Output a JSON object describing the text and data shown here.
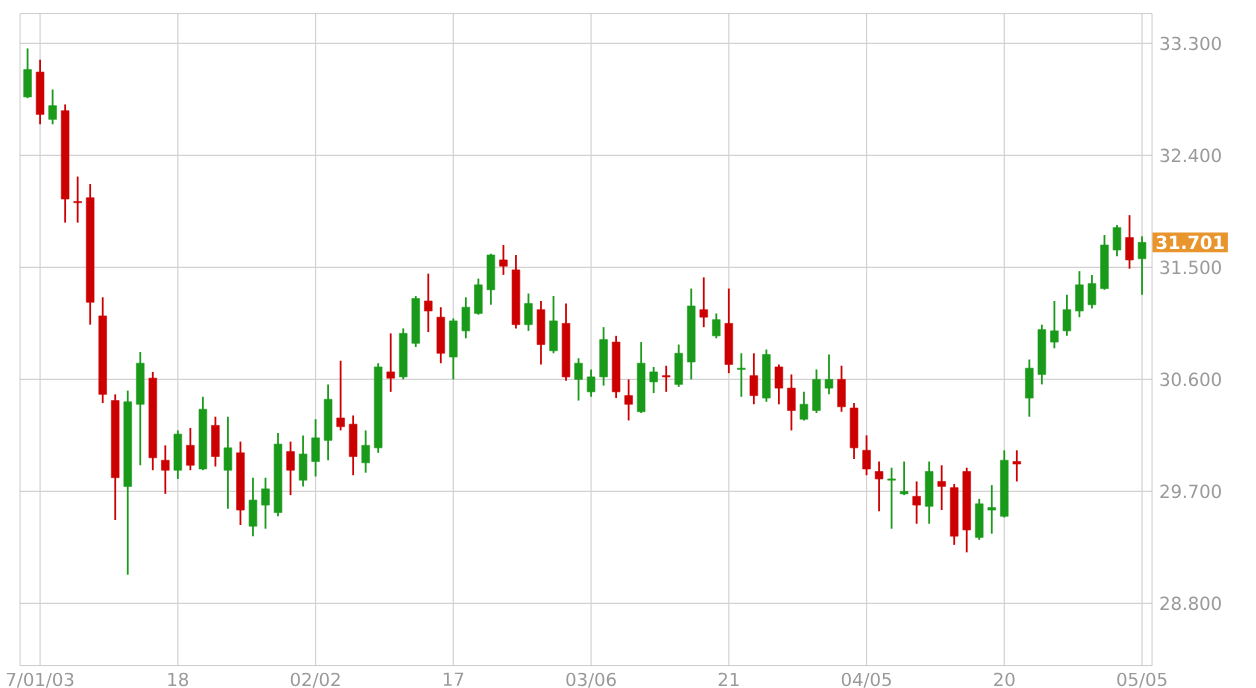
{
  "chart_data": {
    "type": "candlestick",
    "categories": [
      null,
      "7/01/03",
      null,
      null,
      null,
      null,
      null,
      null,
      null,
      null,
      null,
      null,
      "18",
      null,
      null,
      null,
      null,
      null,
      null,
      null,
      null,
      null,
      null,
      "02/02",
      null,
      null,
      null,
      null,
      null,
      null,
      null,
      null,
      null,
      null,
      "17",
      null,
      null,
      null,
      null,
      null,
      null,
      null,
      null,
      null,
      null,
      "03/06",
      null,
      null,
      null,
      null,
      null,
      null,
      null,
      null,
      null,
      null,
      "21",
      null,
      null,
      null,
      null,
      null,
      null,
      null,
      null,
      null,
      null,
      "04/05",
      null,
      null,
      null,
      null,
      null,
      null,
      null,
      null,
      null,
      null,
      "20",
      null,
      null,
      null,
      null,
      null,
      null,
      null,
      null,
      null,
      null,
      "05/05"
    ],
    "ohlc": [
      [
        32.87,
        33.26,
        32.86,
        33.09
      ],
      [
        33.07,
        33.17,
        32.65,
        32.73
      ],
      [
        32.69,
        32.93,
        32.65,
        32.8
      ],
      [
        32.76,
        32.81,
        31.86,
        32.05
      ],
      [
        32.03,
        32.23,
        31.86,
        32.02
      ],
      [
        32.06,
        32.17,
        31.04,
        31.22
      ],
      [
        31.11,
        31.26,
        30.41,
        30.48
      ],
      [
        30.43,
        30.48,
        29.47,
        29.81
      ],
      [
        29.74,
        30.51,
        29.03,
        30.42
      ],
      [
        30.4,
        30.82,
        29.91,
        30.73
      ],
      [
        30.61,
        30.66,
        29.87,
        29.97
      ],
      [
        29.95,
        30.07,
        29.68,
        29.87
      ],
      [
        29.87,
        30.19,
        29.8,
        30.16
      ],
      [
        30.07,
        30.21,
        29.87,
        29.91
      ],
      [
        29.88,
        30.46,
        29.87,
        30.36
      ],
      [
        30.23,
        30.3,
        29.9,
        29.98
      ],
      [
        29.87,
        30.3,
        29.56,
        30.05
      ],
      [
        30.01,
        30.1,
        29.43,
        29.55
      ],
      [
        29.42,
        29.81,
        29.34,
        29.63
      ],
      [
        29.59,
        29.81,
        29.4,
        29.72
      ],
      [
        29.53,
        30.17,
        29.5,
        30.08
      ],
      [
        30.02,
        30.1,
        29.67,
        29.87
      ],
      [
        29.79,
        30.15,
        29.74,
        30.0
      ],
      [
        29.94,
        30.28,
        29.82,
        30.13
      ],
      [
        30.11,
        30.56,
        29.95,
        30.44
      ],
      [
        30.29,
        30.75,
        30.19,
        30.22
      ],
      [
        30.24,
        30.31,
        29.83,
        29.98
      ],
      [
        29.93,
        30.19,
        29.85,
        30.07
      ],
      [
        30.05,
        30.73,
        30.01,
        30.7
      ],
      [
        30.66,
        30.97,
        30.5,
        30.61
      ],
      [
        30.62,
        31.01,
        30.6,
        30.97
      ],
      [
        30.89,
        31.27,
        30.86,
        31.25
      ],
      [
        31.23,
        31.45,
        30.98,
        31.15
      ],
      [
        31.1,
        31.18,
        30.73,
        30.81
      ],
      [
        30.78,
        31.09,
        30.6,
        31.07
      ],
      [
        30.99,
        31.26,
        30.93,
        31.18
      ],
      [
        31.13,
        31.41,
        31.12,
        31.36
      ],
      [
        31.32,
        31.61,
        31.2,
        31.6
      ],
      [
        31.56,
        31.68,
        31.44,
        31.51
      ],
      [
        31.48,
        31.6,
        31.01,
        31.04
      ],
      [
        31.04,
        31.29,
        30.99,
        31.21
      ],
      [
        31.16,
        31.23,
        30.72,
        30.88
      ],
      [
        30.83,
        31.27,
        30.81,
        31.07
      ],
      [
        31.05,
        31.21,
        30.59,
        30.62
      ],
      [
        30.6,
        30.77,
        30.43,
        30.73
      ],
      [
        30.5,
        30.68,
        30.46,
        30.62
      ],
      [
        30.62,
        31.02,
        30.55,
        30.92
      ],
      [
        30.9,
        30.95,
        30.45,
        30.5
      ],
      [
        30.47,
        30.6,
        30.27,
        30.4
      ],
      [
        30.34,
        30.9,
        30.33,
        30.73
      ],
      [
        30.58,
        30.7,
        30.49,
        30.66
      ],
      [
        30.63,
        30.71,
        30.5,
        30.62
      ],
      [
        30.56,
        30.88,
        30.54,
        30.81
      ],
      [
        30.74,
        31.33,
        30.6,
        31.19
      ],
      [
        31.16,
        31.42,
        31.02,
        31.1
      ],
      [
        30.95,
        31.13,
        30.93,
        31.08
      ],
      [
        31.05,
        31.33,
        30.65,
        30.72
      ],
      [
        30.68,
        30.81,
        30.46,
        30.69
      ],
      [
        30.63,
        30.81,
        30.4,
        30.47
      ],
      [
        30.45,
        30.84,
        30.42,
        30.8
      ],
      [
        30.7,
        30.72,
        30.4,
        30.53
      ],
      [
        30.53,
        30.64,
        30.19,
        30.35
      ],
      [
        30.28,
        30.5,
        30.27,
        30.4
      ],
      [
        30.35,
        30.68,
        30.33,
        30.6
      ],
      [
        30.53,
        30.8,
        30.48,
        30.6
      ],
      [
        30.6,
        30.71,
        30.34,
        30.38
      ],
      [
        30.37,
        30.41,
        29.96,
        30.05
      ],
      [
        30.03,
        30.15,
        29.83,
        29.88
      ],
      [
        29.86,
        29.94,
        29.54,
        29.8
      ],
      [
        29.79,
        29.89,
        29.4,
        29.8
      ],
      [
        29.68,
        29.94,
        29.67,
        29.7
      ],
      [
        29.66,
        29.78,
        29.44,
        29.59
      ],
      [
        29.58,
        29.94,
        29.44,
        29.86
      ],
      [
        29.78,
        29.91,
        29.55,
        29.74
      ],
      [
        29.73,
        29.76,
        29.27,
        29.34
      ],
      [
        29.86,
        29.89,
        29.21,
        29.39
      ],
      [
        29.33,
        29.64,
        29.31,
        29.6
      ],
      [
        29.55,
        29.75,
        29.36,
        29.57
      ],
      [
        29.5,
        30.03,
        29.49,
        29.95
      ],
      [
        29.94,
        30.03,
        29.78,
        29.92
      ],
      [
        30.45,
        30.76,
        30.3,
        30.69
      ],
      [
        30.64,
        31.04,
        30.56,
        31.0
      ],
      [
        30.9,
        31.23,
        30.85,
        30.99
      ],
      [
        30.99,
        31.28,
        30.95,
        31.16
      ],
      [
        31.15,
        31.47,
        31.1,
        31.36
      ],
      [
        31.2,
        31.44,
        31.17,
        31.37
      ],
      [
        31.33,
        31.76,
        31.32,
        31.68
      ],
      [
        31.64,
        31.84,
        31.59,
        31.82
      ],
      [
        31.74,
        31.92,
        31.49,
        31.56
      ],
      [
        31.57,
        31.75,
        31.28,
        31.701
      ]
    ],
    "colors": [
      "#1a9a1a",
      "#cc0000",
      "#1a9a1a",
      "#cc0000",
      "#cc0000",
      "#cc0000",
      "#cc0000",
      "#cc0000",
      "#1a9a1a",
      "#1a9a1a",
      "#cc0000",
      "#cc0000",
      "#1a9a1a",
      "#cc0000",
      "#1a9a1a",
      "#cc0000",
      "#1a9a1a",
      "#cc0000",
      "#1a9a1a",
      "#1a9a1a",
      "#1a9a1a",
      "#cc0000",
      "#1a9a1a",
      "#1a9a1a",
      "#1a9a1a",
      "#cc0000",
      "#cc0000",
      "#1a9a1a",
      "#1a9a1a",
      "#cc0000",
      "#1a9a1a",
      "#1a9a1a",
      "#cc0000",
      "#cc0000",
      "#1a9a1a",
      "#1a9a1a",
      "#1a9a1a",
      "#1a9a1a",
      "#cc0000",
      "#cc0000",
      "#1a9a1a",
      "#cc0000",
      "#1a9a1a",
      "#cc0000",
      "#1a9a1a",
      "#1a9a1a",
      "#1a9a1a",
      "#cc0000",
      "#cc0000",
      "#1a9a1a",
      "#1a9a1a",
      "#cc0000",
      "#1a9a1a",
      "#1a9a1a",
      "#cc0000",
      "#1a9a1a",
      "#cc0000",
      "#1a9a1a",
      "#cc0000",
      "#1a9a1a",
      "#cc0000",
      "#cc0000",
      "#1a9a1a",
      "#1a9a1a",
      "#1a9a1a",
      "#cc0000",
      "#cc0000",
      "#cc0000",
      "#cc0000",
      "#1a9a1a",
      "#1a9a1a",
      "#cc0000",
      "#1a9a1a",
      "#cc0000",
      "#cc0000",
      "#cc0000",
      "#1a9a1a",
      "#1a9a1a",
      "#1a9a1a",
      "#cc0000",
      "#1a9a1a",
      "#1a9a1a",
      "#1a9a1a",
      "#1a9a1a",
      "#1a9a1a",
      "#1a9a1a",
      "#1a9a1a",
      "#1a9a1a",
      "#cc0000",
      "#1a9a1a"
    ],
    "ylim": [
      28.3,
      33.54
    ],
    "yticks": [
      {
        "value": 28.8,
        "label": "28.800"
      },
      {
        "value": 29.7,
        "label": "29.700"
      },
      {
        "value": 30.6,
        "label": "30.600"
      },
      {
        "value": 31.5,
        "label": "31.500"
      },
      {
        "value": 32.4,
        "label": "32.400"
      },
      {
        "value": 33.3,
        "label": "33.300"
      }
    ],
    "grid": true,
    "annotations": [
      "31.701"
    ]
  }
}
